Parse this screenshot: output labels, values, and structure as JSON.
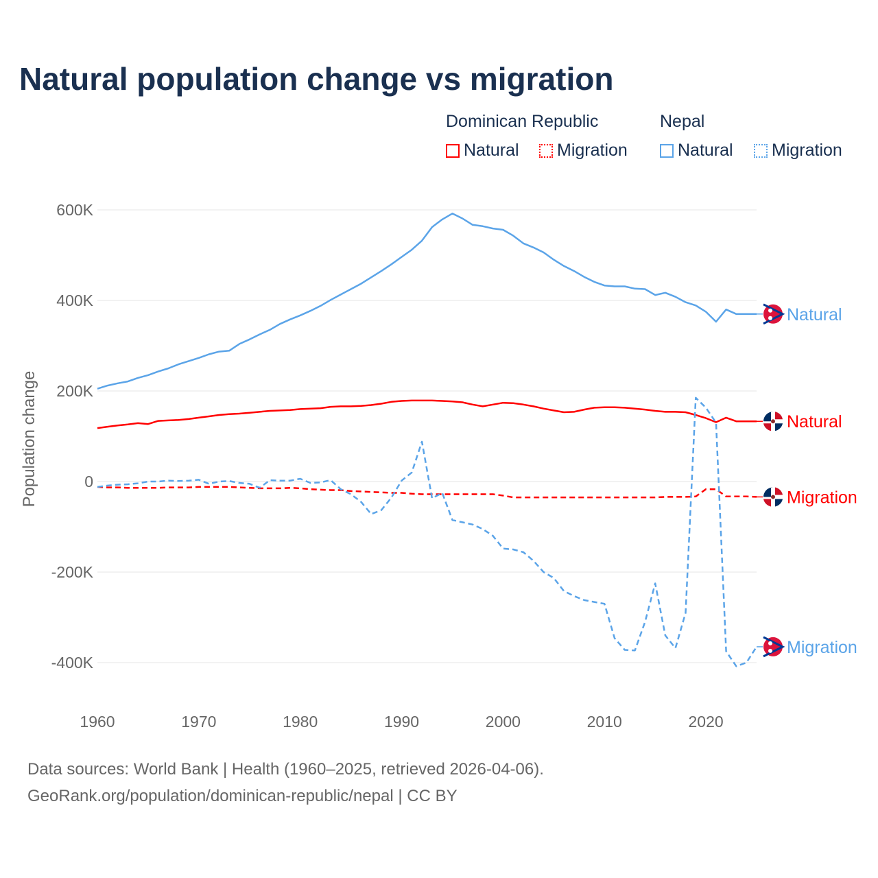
{
  "title": "Natural population change vs migration",
  "legend": {
    "groups": [
      {
        "name": "Dominican Republic",
        "items": [
          "Natural",
          "Migration"
        ],
        "color": "#ff0000"
      },
      {
        "name": "Nepal",
        "items": [
          "Natural",
          "Migration"
        ],
        "color": "#5ba4e8"
      }
    ]
  },
  "footer": {
    "line1": "Data sources: World Bank | Health (1960–2025, retrieved 2026-04-06).",
    "line2": "GeoRank.org/population/dominican-republic/nepal | CC BY"
  },
  "chart_data": {
    "type": "line",
    "title": "Natural population change vs migration",
    "xlabel": "",
    "ylabel": "Population change",
    "xlim": [
      1960,
      2025
    ],
    "ylim": [
      -500000,
      600000
    ],
    "x_ticks": [
      1960,
      1970,
      1980,
      1990,
      2000,
      2010,
      2020
    ],
    "x_tick_labels": [
      "1960",
      "1970",
      "1980",
      "1990",
      "2000",
      "2010",
      "2020"
    ],
    "y_ticks": [
      -400000,
      -200000,
      0,
      200000,
      400000,
      600000
    ],
    "y_tick_labels": [
      "-400K",
      "-200K",
      "0",
      "200K",
      "400K",
      "600K"
    ],
    "grid": true,
    "legend_position": "top-right",
    "x_start": 1960,
    "units": "thousands",
    "series": [
      {
        "name": "Nepal Natural",
        "label": "Natural",
        "country": "Nepal",
        "color": "#5ba4e8",
        "dash": false,
        "values": [
          205,
          212,
          217,
          221,
          229,
          235,
          243,
          250,
          259,
          266,
          273,
          281,
          287,
          289,
          304,
          314,
          325,
          335,
          348,
          358,
          367,
          377,
          388,
          401,
          413,
          425,
          437,
          451,
          465,
          480,
          496,
          512,
          532,
          562,
          579,
          592,
          581,
          567,
          564,
          559,
          556,
          543,
          526,
          517,
          506,
          490,
          476,
          465,
          452,
          441,
          433,
          431,
          431,
          426,
          425,
          412,
          417,
          408,
          396,
          389,
          375,
          353,
          380,
          370,
          370,
          370
        ]
      },
      {
        "name": "Dominican Republic Natural",
        "label": "Natural",
        "country": "Dominican Republic",
        "color": "#ff0000",
        "dash": false,
        "values": [
          118,
          121,
          124,
          126,
          129,
          127,
          134,
          135,
          136,
          138,
          141,
          144,
          147,
          149,
          150,
          152,
          154,
          156,
          157,
          158,
          160,
          161,
          162,
          165,
          166,
          166,
          167,
          169,
          172,
          176,
          178,
          179,
          179,
          179,
          178,
          177,
          175,
          170,
          166,
          170,
          174,
          173,
          170,
          166,
          161,
          157,
          153,
          154,
          159,
          163,
          164,
          164,
          163,
          161,
          159,
          156,
          154,
          154,
          153,
          147,
          140,
          131,
          141,
          133,
          133,
          133
        ]
      },
      {
        "name": "Dominican Republic Migration",
        "label": "Migration",
        "country": "Dominican Republic",
        "color": "#ff0000",
        "dash": true,
        "values": [
          -12,
          -13,
          -13,
          -14,
          -14,
          -14,
          -14,
          -13,
          -13,
          -13,
          -12,
          -12,
          -12,
          -12,
          -13,
          -14,
          -15,
          -15,
          -15,
          -14,
          -15,
          -17,
          -18,
          -19,
          -19,
          -21,
          -22,
          -23,
          -24,
          -25,
          -25,
          -27,
          -28,
          -28,
          -28,
          -28,
          -28,
          -28,
          -28,
          -28,
          -31,
          -35,
          -35,
          -35,
          -35,
          -35,
          -35,
          -35,
          -35,
          -35,
          -35,
          -35,
          -35,
          -35,
          -35,
          -35,
          -34,
          -34,
          -34,
          -33,
          -17,
          -17,
          -33,
          -33,
          -33,
          -34
        ]
      },
      {
        "name": "Nepal Migration",
        "label": "Migration",
        "country": "Nepal",
        "color": "#5ba4e8",
        "dash": true,
        "values": [
          -12,
          -9,
          -7,
          -6,
          -4,
          0,
          0,
          2,
          1,
          2,
          4,
          -5,
          0,
          1,
          -3,
          -5,
          -14,
          3,
          2,
          2,
          6,
          -3,
          -2,
          3,
          -17,
          -28,
          -45,
          -72,
          -63,
          -35,
          2,
          20,
          88,
          -37,
          -25,
          -85,
          -90,
          -95,
          -105,
          -120,
          -148,
          -150,
          -156,
          -175,
          -200,
          -213,
          -242,
          -253,
          -262,
          -266,
          -270,
          -346,
          -372,
          -373,
          -310,
          -225,
          -340,
          -368,
          -290,
          185,
          163,
          130,
          -375,
          -408,
          -400,
          -365
        ]
      }
    ]
  }
}
